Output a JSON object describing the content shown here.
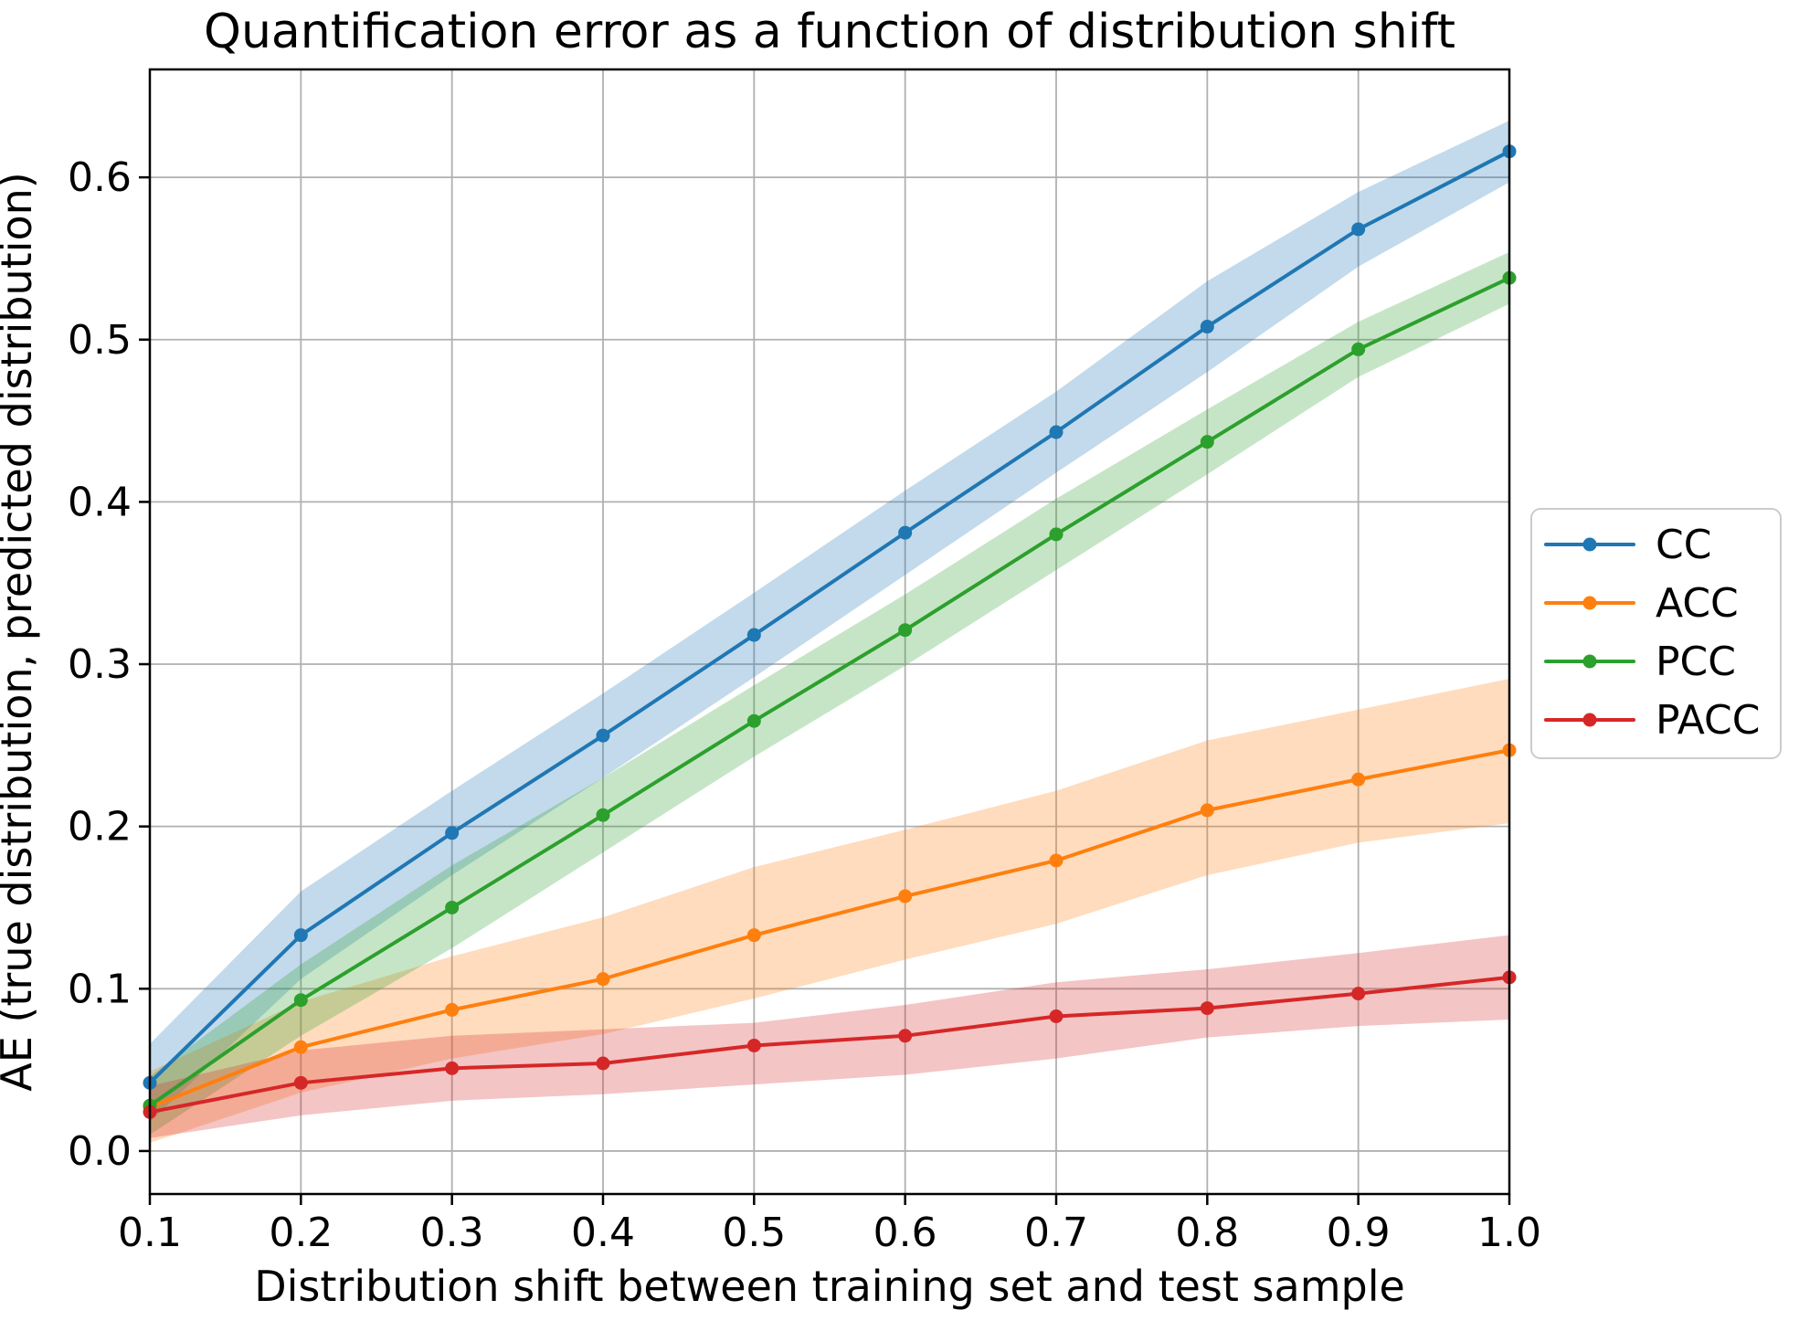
{
  "chart_data": {
    "type": "line",
    "title": "Quantification error as a function of distribution shift",
    "xlabel": "Distribution shift between training set and test sample",
    "ylabel": "AE (true distribution, predicted distribution)",
    "x": [
      0.1,
      0.2,
      0.3,
      0.4,
      0.5,
      0.6,
      0.7,
      0.8,
      0.9,
      1.0
    ],
    "xlim": [
      0.1,
      1.0
    ],
    "ylim": [
      -0.0265,
      0.6665
    ],
    "xtick_labels": [
      "0.1",
      "0.2",
      "0.3",
      "0.4",
      "0.5",
      "0.6",
      "0.7",
      "0.8",
      "0.9",
      "1.0"
    ],
    "ytick_values": [
      0.0,
      0.1,
      0.2,
      0.3,
      0.4,
      0.5,
      0.6
    ],
    "ytick_labels": [
      "0.0",
      "0.1",
      "0.2",
      "0.3",
      "0.4",
      "0.5",
      "0.6"
    ],
    "grid": true,
    "legend_position": "outside-right",
    "band_opacity": 0.27,
    "colors": {
      "background": "#ffffff",
      "grid": "#b0b0b0",
      "spine": "#000000",
      "legend_border": "#cccccc",
      "legend_fill": "#ffffff",
      "text": "#000000"
    },
    "series": [
      {
        "name": "CC",
        "color": "#1f77b4",
        "values": [
          0.042,
          0.133,
          0.196,
          0.256,
          0.318,
          0.381,
          0.443,
          0.508,
          0.568,
          0.616
        ],
        "band_lo": [
          0.018,
          0.106,
          0.17,
          0.23,
          0.292,
          0.355,
          0.418,
          0.48,
          0.545,
          0.597
        ],
        "band_hi": [
          0.066,
          0.16,
          0.222,
          0.282,
          0.344,
          0.407,
          0.468,
          0.536,
          0.591,
          0.635
        ]
      },
      {
        "name": "ACC",
        "color": "#ff7f0e",
        "values": [
          0.027,
          0.064,
          0.087,
          0.106,
          0.133,
          0.157,
          0.179,
          0.21,
          0.229,
          0.247
        ],
        "band_lo": [
          0.005,
          0.036,
          0.057,
          0.072,
          0.094,
          0.118,
          0.14,
          0.17,
          0.19,
          0.202
        ],
        "band_hi": [
          0.049,
          0.092,
          0.12,
          0.144,
          0.175,
          0.198,
          0.222,
          0.253,
          0.272,
          0.291
        ]
      },
      {
        "name": "PCC",
        "color": "#2ca02c",
        "values": [
          0.028,
          0.093,
          0.15,
          0.207,
          0.265,
          0.321,
          0.38,
          0.437,
          0.494,
          0.538
        ],
        "band_lo": [
          0.01,
          0.071,
          0.125,
          0.184,
          0.243,
          0.299,
          0.358,
          0.417,
          0.477,
          0.522
        ],
        "band_hi": [
          0.046,
          0.115,
          0.176,
          0.23,
          0.287,
          0.343,
          0.402,
          0.457,
          0.511,
          0.554
        ]
      },
      {
        "name": "PACC",
        "color": "#d62728",
        "values": [
          0.024,
          0.042,
          0.051,
          0.054,
          0.065,
          0.071,
          0.083,
          0.088,
          0.097,
          0.107
        ],
        "band_lo": [
          0.008,
          0.022,
          0.031,
          0.035,
          0.041,
          0.047,
          0.057,
          0.07,
          0.077,
          0.081
        ],
        "band_hi": [
          0.04,
          0.062,
          0.071,
          0.075,
          0.079,
          0.09,
          0.104,
          0.112,
          0.122,
          0.133
        ]
      }
    ],
    "legend_order": [
      0,
      1,
      2,
      3
    ]
  }
}
